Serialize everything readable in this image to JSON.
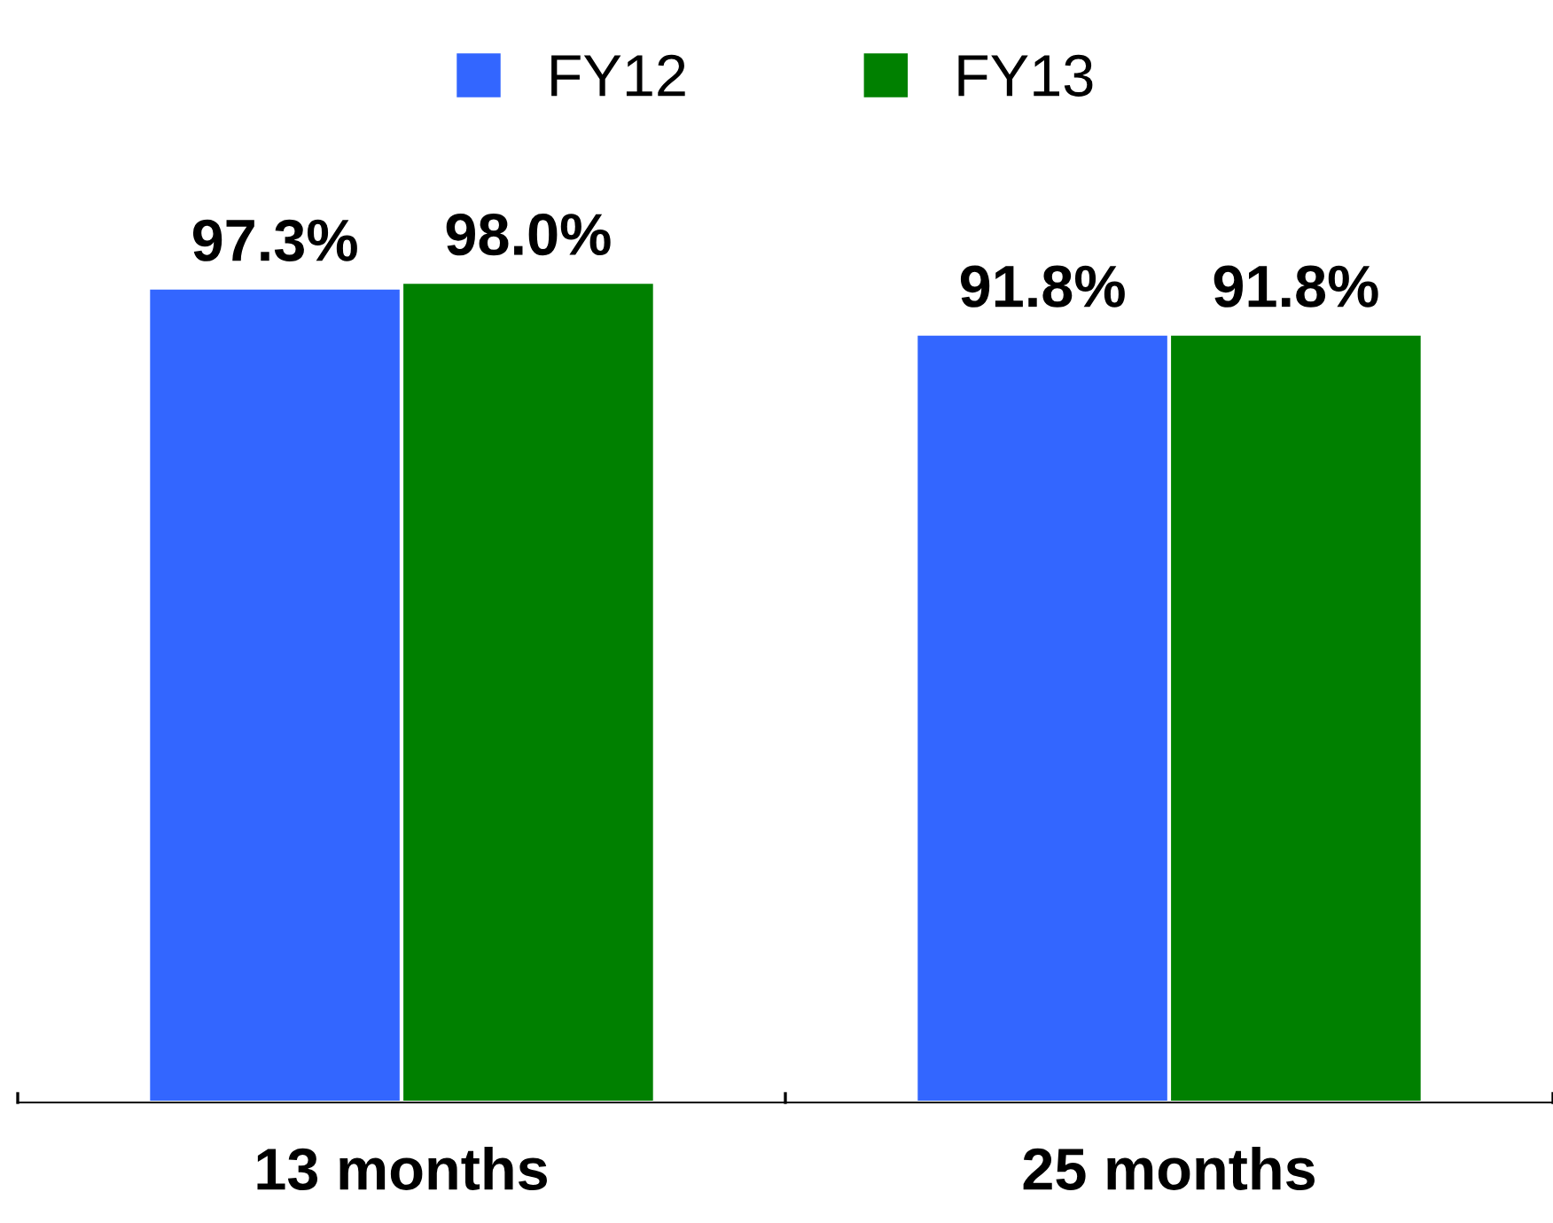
{
  "chart_data": {
    "type": "bar",
    "categories": [
      "13 months",
      "25 months"
    ],
    "series": [
      {
        "name": "FY12",
        "color": "#3366ff",
        "values": [
          97.3,
          91.8
        ],
        "value_labels": [
          "97.3%",
          "91.8%"
        ]
      },
      {
        "name": "FY13",
        "color": "#008000",
        "values": [
          98.0,
          91.8
        ],
        "value_labels": [
          "98.0%",
          "91.8%"
        ]
      }
    ],
    "tick_labels": "x",
    "legend": "top",
    "grid": false
  }
}
